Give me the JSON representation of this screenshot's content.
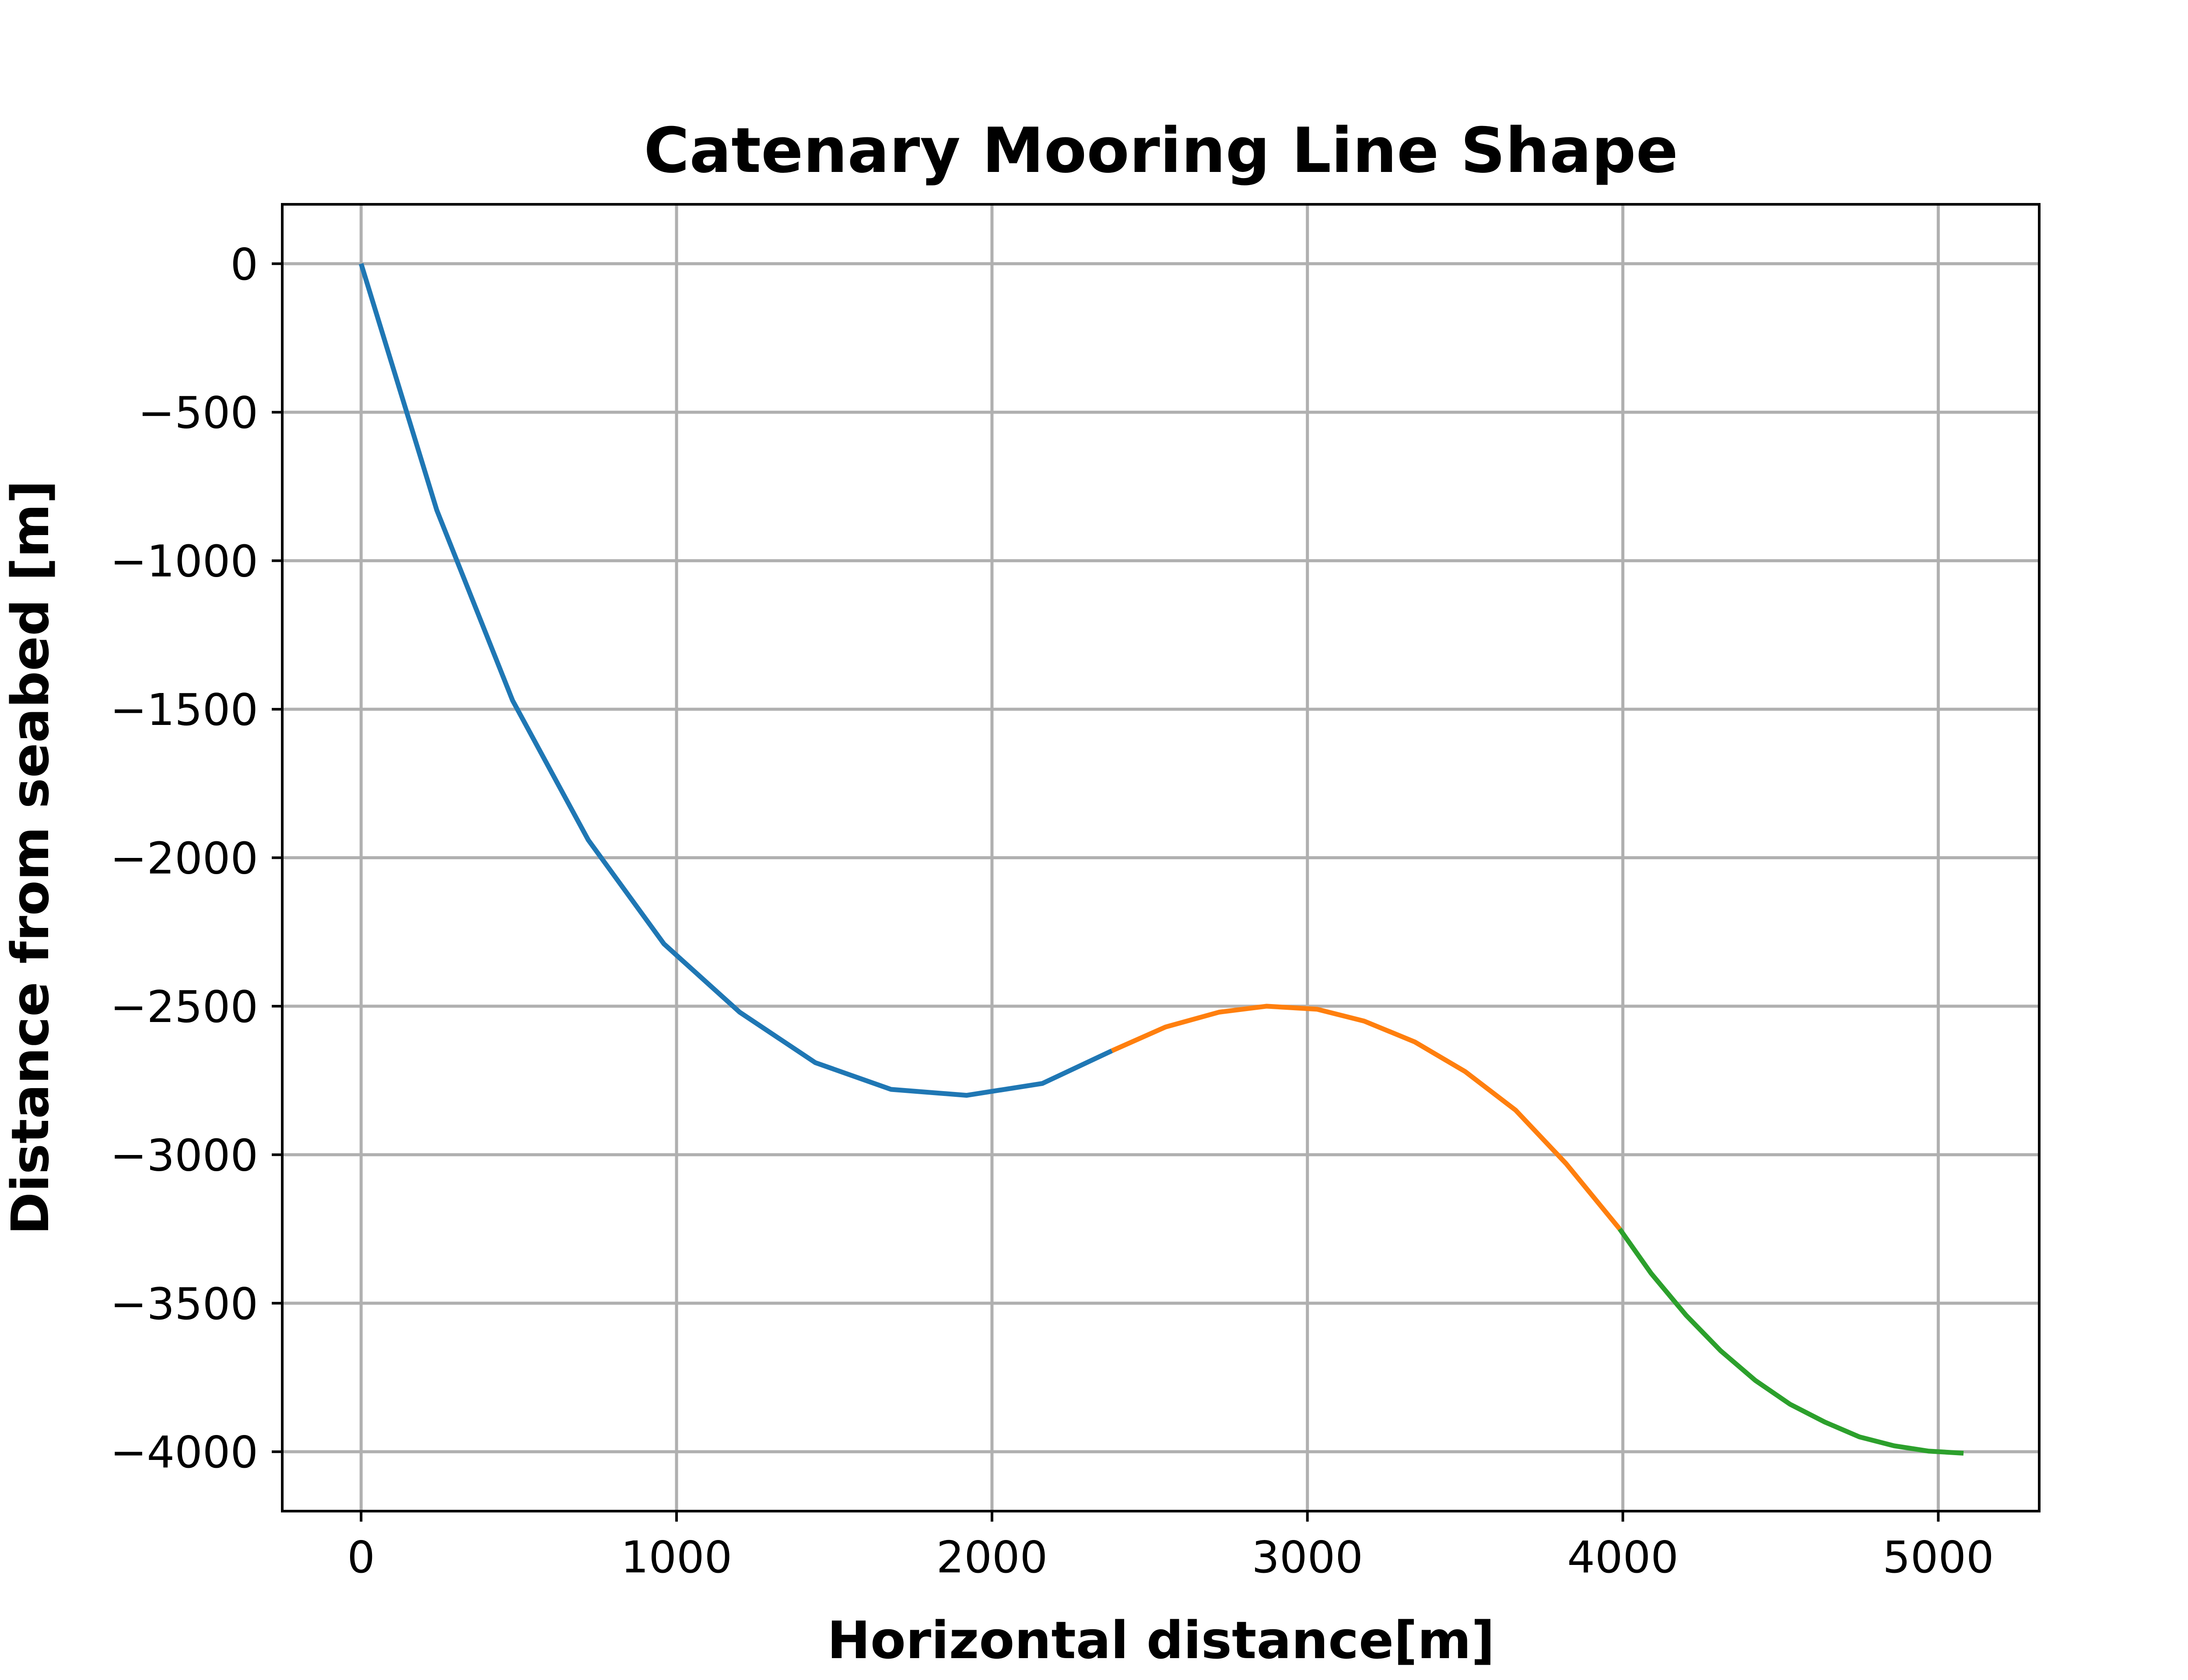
{
  "chart_data": {
    "type": "line",
    "title": "Catenary Mooring Line Shape",
    "xlabel": "Horizontal distance[m]",
    "ylabel": "Distance from seabed [m]",
    "xlim": [
      -250,
      5320
    ],
    "ylim": [
      -4200,
      200
    ],
    "xticks": [
      0,
      1000,
      2000,
      3000,
      4000,
      5000
    ],
    "yticks": [
      0,
      -500,
      -1000,
      -1500,
      -2000,
      -2500,
      -3000,
      -3500,
      -4000
    ],
    "xtick_labels": [
      "0",
      "1000",
      "2000",
      "3000",
      "4000",
      "5000"
    ],
    "ytick_labels": [
      "0",
      "−500",
      "−1000",
      "−1500",
      "−2000",
      "−2500",
      "−3000",
      "−3500",
      "−4000"
    ],
    "grid": true,
    "series": [
      {
        "color": "#1f77b4",
        "x": [
          0,
          240,
          480,
          720,
          960,
          1200,
          1440,
          1680,
          1920,
          2160,
          2380
        ],
        "y": [
          0,
          -830,
          -1470,
          -1940,
          -2290,
          -2520,
          -2690,
          -2780,
          -2800,
          -2760,
          -2650
        ]
      },
      {
        "color": "#ff7f0e",
        "x": [
          2380,
          2550,
          2720,
          2870,
          3030,
          3180,
          3340,
          3500,
          3660,
          3820,
          3990
        ],
        "y": [
          -2650,
          -2570,
          -2520,
          -2500,
          -2510,
          -2550,
          -2620,
          -2720,
          -2850,
          -3030,
          -3250
        ]
      },
      {
        "color": "#2ca02c",
        "x": [
          3990,
          4090,
          4200,
          4310,
          4420,
          4530,
          4640,
          4750,
          4860,
          4970,
          5080
        ],
        "y": [
          -3250,
          -3400,
          -3540,
          -3660,
          -3760,
          -3840,
          -3900,
          -3950,
          -3980,
          -3998,
          -4005
        ]
      }
    ]
  }
}
